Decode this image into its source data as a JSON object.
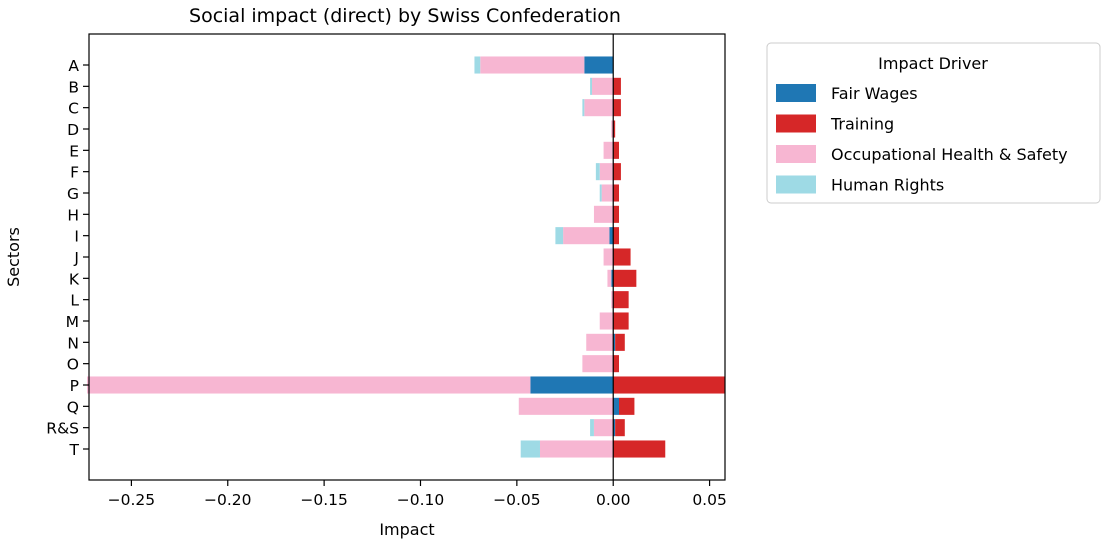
{
  "chart_data": {
    "type": "bar",
    "orientation": "horizontal",
    "stacked": true,
    "title": "Social impact (direct) by Swiss Confederation",
    "xlabel": "Impact",
    "ylabel": "Sectors",
    "xlim": [
      -0.272,
      0.058
    ],
    "xticks": [
      -0.25,
      -0.2,
      -0.15,
      -0.1,
      -0.05,
      0.0,
      0.05
    ],
    "xtick_labels": [
      "−0.25",
      "−0.20",
      "−0.15",
      "−0.10",
      "−0.05",
      "0.00",
      "0.05"
    ],
    "grid": false,
    "zero_line": true,
    "legend_title": "Impact Driver",
    "legend_position": "outside-right-top",
    "categories": [
      "A",
      "B",
      "C",
      "D",
      "E",
      "F",
      "G",
      "H",
      "I",
      "J",
      "K",
      "L",
      "M",
      "N",
      "O",
      "P",
      "Q",
      "R&S",
      "T"
    ],
    "series": [
      {
        "name": "Fair Wages",
        "color": "#1f77b4",
        "values": [
          -0.015,
          0,
          0,
          0,
          0,
          0,
          0,
          0,
          -0.002,
          0,
          -0.001,
          0,
          0,
          0.001,
          0,
          -0.043,
          0.003,
          0.001,
          0
        ]
      },
      {
        "name": "Training",
        "color": "#d62728",
        "values": [
          0,
          0.004,
          0.004,
          0.001,
          0.003,
          0.004,
          0.003,
          0.003,
          0.003,
          0.009,
          0.012,
          0.008,
          0.008,
          0.005,
          0.003,
          0.058,
          0.008,
          0.005,
          0.027
        ]
      },
      {
        "name": "Occupational Health & Safety",
        "color": "#f7b6d2",
        "values": [
          -0.054,
          -0.011,
          -0.015,
          -0.001,
          -0.005,
          -0.007,
          -0.006,
          -0.01,
          -0.024,
          -0.005,
          -0.002,
          -0.001,
          -0.007,
          -0.014,
          -0.016,
          -0.23,
          -0.049,
          -0.01,
          -0.038
        ]
      },
      {
        "name": "Human Rights",
        "color": "#9edae5",
        "values": [
          -0.003,
          -0.001,
          -0.001,
          0,
          0,
          -0.002,
          -0.001,
          0,
          -0.004,
          0,
          0,
          0,
          0,
          0,
          0,
          0,
          0,
          -0.002,
          -0.01
        ]
      }
    ]
  }
}
